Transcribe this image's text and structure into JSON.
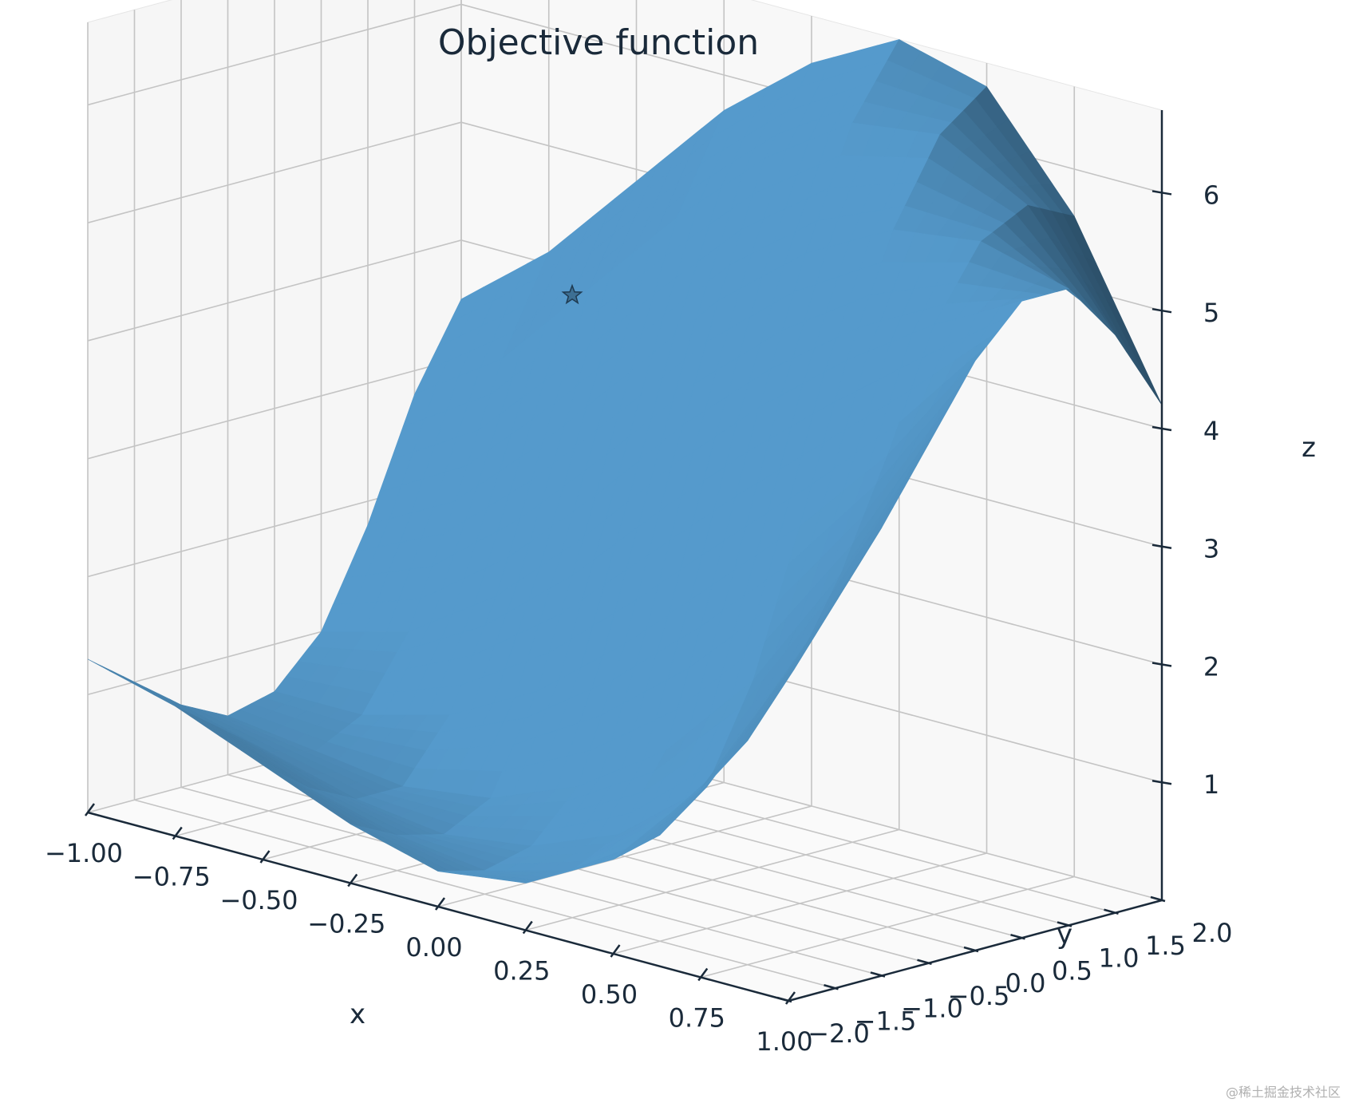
{
  "chart_data": {
    "type": "surface",
    "title": "Objective function",
    "xlabel": "x",
    "ylabel": "y",
    "zlabel": "z",
    "x_ticks": [
      "−1.00",
      "−0.75",
      "−0.50",
      "−0.25",
      "0.00",
      "0.25",
      "0.50",
      "0.75",
      "1.00"
    ],
    "y_ticks": [
      "−2.0",
      "−1.5",
      "−1.0",
      "−0.5",
      "0.0",
      "0.5",
      "1.0",
      "1.5",
      "2.0"
    ],
    "z_ticks": [
      "1",
      "2",
      "3",
      "4",
      "5",
      "6"
    ],
    "xlim": [
      -1.0,
      1.0
    ],
    "ylim": [
      -2.0,
      2.0
    ],
    "zlim": [
      0.0,
      6.7
    ],
    "grid": true,
    "surface_color": "#4f8fbd",
    "surface_grid": {
      "x": [
        -1.0,
        -0.75,
        -0.5,
        -0.25,
        0.0,
        0.25,
        0.5,
        0.75,
        1.0
      ],
      "y": [
        -2.0,
        -1.5,
        -1.0,
        -0.5,
        0.0,
        0.5,
        1.0,
        1.5,
        2.0
      ],
      "z": [
        [
          1.3,
          1.1,
          0.8,
          0.5,
          0.3,
          0.4,
          0.8,
          1.6,
          2.8
        ],
        [
          1.0,
          0.8,
          0.5,
          0.3,
          0.2,
          0.4,
          0.9,
          1.9,
          3.3
        ],
        [
          0.7,
          0.5,
          0.3,
          0.2,
          0.3,
          0.6,
          1.2,
          2.4,
          3.8
        ],
        [
          0.5,
          0.4,
          0.3,
          0.4,
          0.7,
          1.2,
          2.0,
          3.1,
          4.4
        ],
        [
          0.6,
          0.6,
          0.8,
          1.2,
          1.8,
          2.5,
          3.2,
          4.0,
          5.0
        ],
        [
          1.0,
          1.2,
          1.7,
          2.4,
          3.2,
          3.9,
          4.5,
          5.0,
          5.4
        ],
        [
          1.8,
          2.2,
          2.9,
          3.7,
          4.5,
          5.1,
          5.5,
          5.6,
          5.4
        ],
        [
          2.8,
          3.3,
          4.1,
          4.9,
          5.6,
          6.1,
          6.2,
          5.8,
          4.9
        ],
        [
          3.5,
          4.1,
          4.9,
          5.7,
          6.3,
          6.7,
          6.5,
          5.6,
          4.2
        ]
      ]
    },
    "markers": [
      {
        "symbol": "star",
        "x": -0.55,
        "y": 1.5,
        "z": 4.0
      }
    ]
  },
  "watermark": "@稀土掘金技术社区"
}
